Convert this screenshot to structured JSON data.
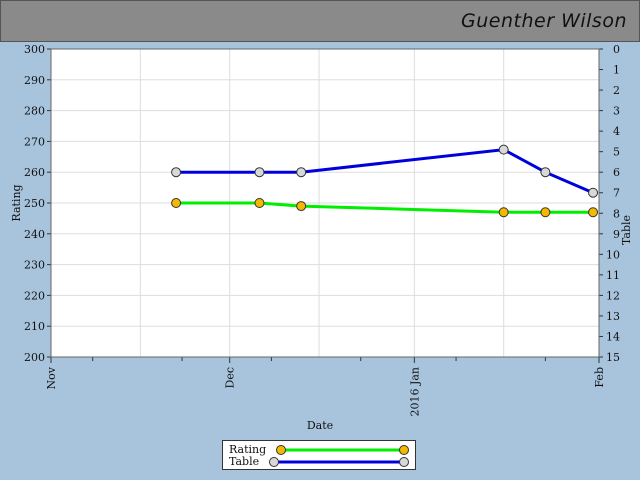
{
  "header": {
    "player_name": "Guenther Wilson"
  },
  "chart_data": {
    "type": "line",
    "xlabel": "Date",
    "ylabel": "Rating",
    "y2label": "Table",
    "ylim": [
      200,
      300
    ],
    "y2lim": [
      0,
      15
    ],
    "y2_inverted": true,
    "xlim": [
      "2015-11-01",
      "2016-02-01"
    ],
    "x_tick_labels": [
      "Nov",
      "Dec",
      "2016 Jan",
      "Feb"
    ],
    "x_tick_dates": [
      "2015-11-01",
      "2015-12-01",
      "2016-01-01",
      "2016-02-01"
    ],
    "y_ticks": [
      200,
      210,
      220,
      230,
      240,
      250,
      260,
      270,
      280,
      290,
      300
    ],
    "y2_ticks": [
      0,
      1,
      2,
      3,
      4,
      5,
      6,
      7,
      8,
      9,
      10,
      11,
      12,
      13,
      14,
      15
    ],
    "grid": true,
    "legend_position": "bottom-center",
    "series": [
      {
        "name": "Rating",
        "axis": "left",
        "color": "#00ee00",
        "marker_color": "#f5b800",
        "x": [
          "2015-11-22",
          "2015-12-06",
          "2015-12-13",
          "2016-01-16",
          "2016-01-23",
          "2016-01-31"
        ],
        "values": [
          250,
          250,
          249,
          247,
          247,
          247
        ]
      },
      {
        "name": "Table",
        "axis": "right",
        "color": "#0000dd",
        "marker_color": "#d8d8d8",
        "x": [
          "2015-11-22",
          "2015-12-06",
          "2015-12-13",
          "2016-01-16",
          "2016-01-23",
          "2016-01-31"
        ],
        "values": [
          6,
          6,
          6,
          4.9,
          6,
          7
        ]
      }
    ]
  },
  "legend": {
    "rating_label": "Rating",
    "table_label": "Table"
  }
}
